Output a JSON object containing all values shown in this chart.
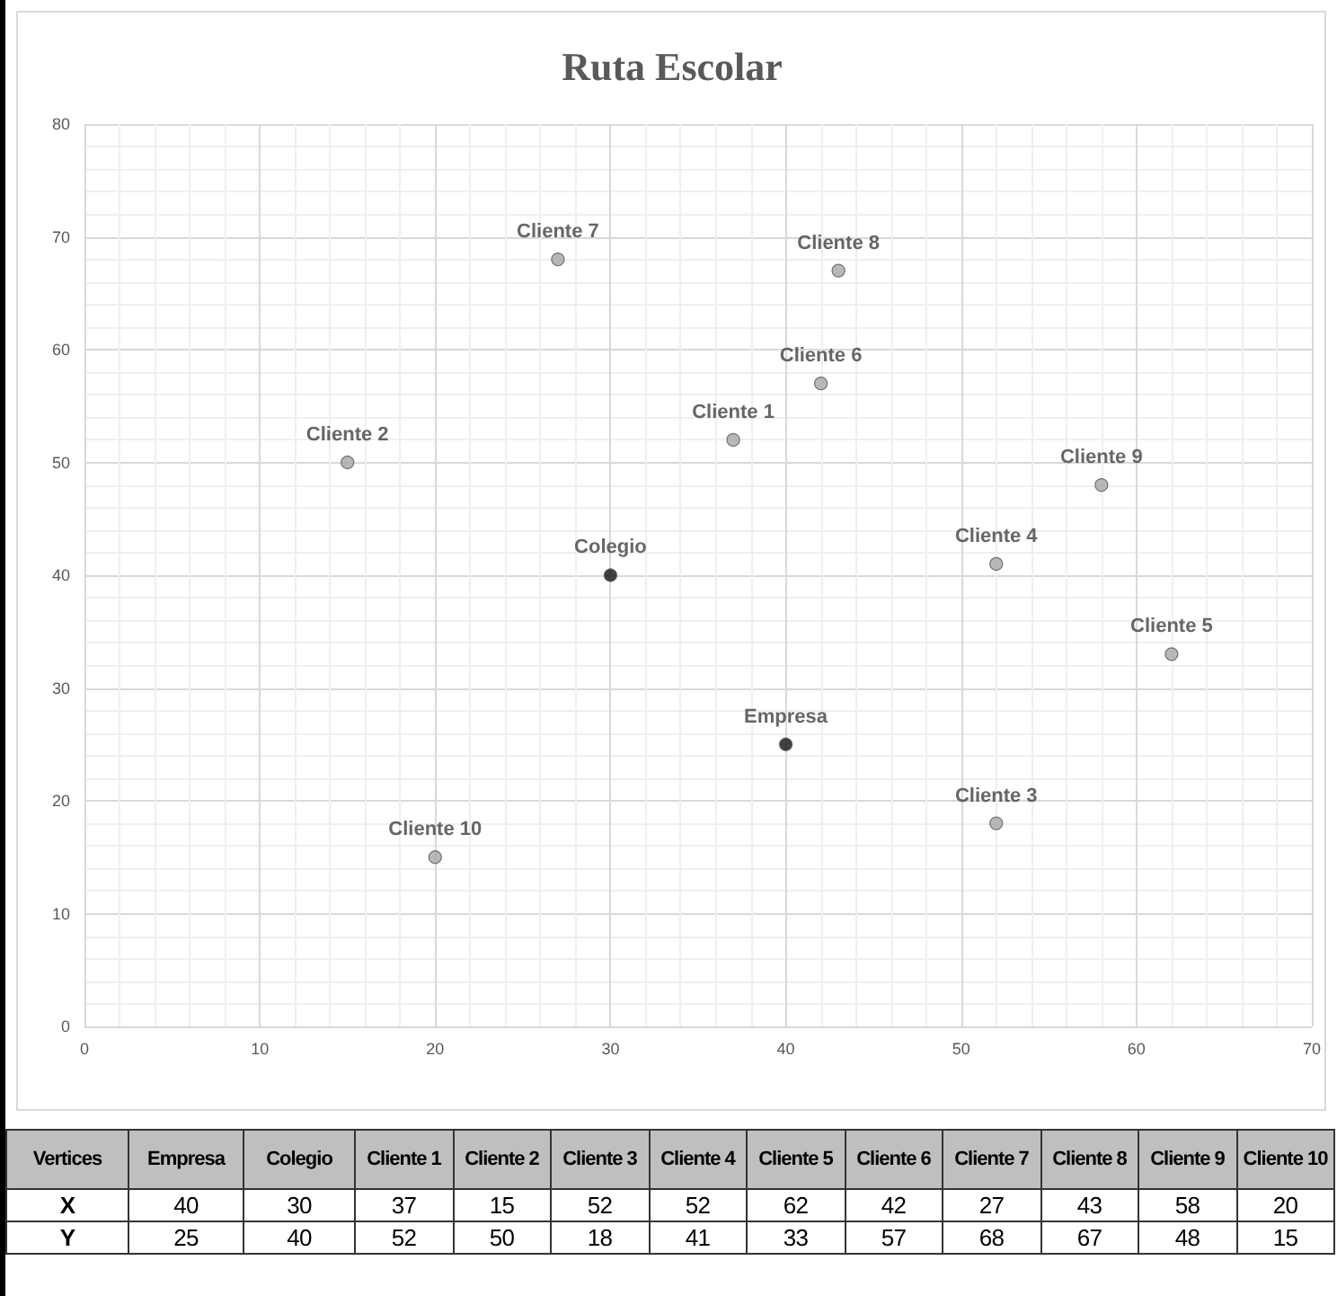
{
  "chart_data": [
    {
      "type": "scatter",
      "title": "Ruta Escolar",
      "xlim": [
        0,
        70
      ],
      "ylim": [
        0,
        80
      ],
      "xticks": [
        0,
        10,
        20,
        30,
        40,
        50,
        60,
        70
      ],
      "yticks": [
        0,
        10,
        20,
        30,
        40,
        50,
        60,
        70,
        80
      ],
      "grid": true,
      "legend": false,
      "marker": "circle",
      "series": [
        {
          "name": "Empresa",
          "color": "#111111",
          "x": [
            40
          ],
          "values": [
            25
          ]
        },
        {
          "name": "Colegio",
          "color": "#111111",
          "x": [
            30
          ],
          "values": [
            40
          ]
        },
        {
          "name": "Cliente 1",
          "color": "#a6a6a6",
          "x": [
            37
          ],
          "values": [
            52
          ]
        },
        {
          "name": "Cliente 2",
          "color": "#a6a6a6",
          "x": [
            15
          ],
          "values": [
            50
          ]
        },
        {
          "name": "Cliente 3",
          "color": "#a6a6a6",
          "x": [
            52
          ],
          "values": [
            18
          ]
        },
        {
          "name": "Cliente 4",
          "color": "#a6a6a6",
          "x": [
            52
          ],
          "values": [
            41
          ]
        },
        {
          "name": "Cliente 5",
          "color": "#a6a6a6",
          "x": [
            62
          ],
          "values": [
            33
          ]
        },
        {
          "name": "Cliente 6",
          "color": "#a6a6a6",
          "x": [
            42
          ],
          "values": [
            57
          ]
        },
        {
          "name": "Cliente 7",
          "color": "#a6a6a6",
          "x": [
            27
          ],
          "values": [
            68
          ]
        },
        {
          "name": "Cliente 8",
          "color": "#a6a6a6",
          "x": [
            43
          ],
          "values": [
            67
          ]
        },
        {
          "name": "Cliente 9",
          "color": "#a6a6a6",
          "x": [
            58
          ],
          "values": [
            48
          ]
        },
        {
          "name": "Cliente 10",
          "color": "#a6a6a6",
          "x": [
            20
          ],
          "values": [
            15
          ]
        }
      ]
    },
    {
      "type": "other",
      "xlabel": "Vertices",
      "categories": [
        "Empresa",
        "Colegio",
        "Cliente 1",
        "Cliente 2",
        "Cliente 3",
        "Cliente 4",
        "Cliente 5",
        "Cliente 6",
        "Cliente 7",
        "Cliente 8",
        "Cliente 9",
        "Cliente 10"
      ],
      "data_labels": true,
      "series": [
        {
          "name": "X",
          "values": [
            40,
            30,
            37,
            15,
            52,
            52,
            62,
            42,
            27,
            43,
            58,
            20
          ]
        },
        {
          "name": "Y",
          "values": [
            25,
            40,
            52,
            50,
            18,
            41,
            33,
            57,
            68,
            67,
            48,
            15
          ]
        }
      ]
    }
  ]
}
